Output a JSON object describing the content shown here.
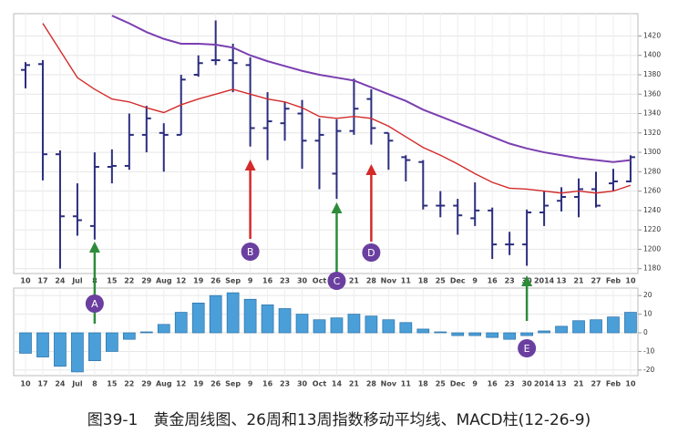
{
  "caption": "图39-1　黄金周线图、26周和13周指数移动平均线、MACD柱(12-26-9)",
  "chart_data": [
    {
      "type": "ohlc",
      "categories": [
        "10",
        "17",
        "24",
        "Jul",
        "8",
        "15",
        "22",
        "29",
        "Aug",
        "12",
        "19",
        "26",
        "Sep",
        "9",
        "16",
        "23",
        "30",
        "Oct",
        "14",
        "21",
        "28",
        "Nov",
        "11",
        "18",
        "25",
        "Dec",
        "9",
        "16",
        "23",
        "30",
        "2014",
        "13",
        "21",
        "27",
        "Feb",
        "10"
      ],
      "open": [
        1385,
        1391,
        1298,
        1234,
        1224,
        1285,
        1286,
        1318,
        1320,
        1318,
        1380,
        1395,
        1395,
        1390,
        1325,
        1330,
        1340,
        1312,
        1278,
        1322,
        1355,
        1320,
        1295,
        1290,
        1245,
        1245,
        1232,
        1240,
        1205,
        1205,
        1238,
        1250,
        1254,
        1262,
        1268,
        1270
      ],
      "high": [
        1393,
        1395,
        1302,
        1268,
        1300,
        1303,
        1340,
        1348,
        1330,
        1380,
        1400,
        1436,
        1412,
        1398,
        1362,
        1352,
        1354,
        1335,
        1334,
        1376,
        1365,
        1320,
        1297,
        1292,
        1260,
        1252,
        1269,
        1243,
        1218,
        1241,
        1260,
        1264,
        1273,
        1280,
        1283,
        1297
      ],
      "low": [
        1366,
        1271,
        1180,
        1214,
        1210,
        1268,
        1282,
        1300,
        1280,
        1318,
        1378,
        1390,
        1362,
        1306,
        1292,
        1312,
        1283,
        1262,
        1252,
        1318,
        1308,
        1282,
        1270,
        1241,
        1233,
        1215,
        1224,
        1190,
        1194,
        1183,
        1224,
        1239,
        1233,
        1243,
        1260,
        1269
      ],
      "close": [
        1390,
        1298,
        1234,
        1230,
        1285,
        1286,
        1318,
        1335,
        1318,
        1375,
        1392,
        1395,
        1392,
        1325,
        1332,
        1345,
        1312,
        1318,
        1322,
        1345,
        1325,
        1312,
        1292,
        1245,
        1245,
        1235,
        1240,
        1205,
        1205,
        1238,
        1245,
        1254,
        1262,
        1245,
        1270,
        1295
      ],
      "color": "#2b2d7e",
      "series": [
        {
          "name": "13-week EMA",
          "color": "#d42a2a",
          "values": [
            null,
            1433,
            1405,
            1377,
            1365,
            1355,
            1352,
            1346,
            1341,
            1349,
            1355,
            1360,
            1365,
            1360,
            1355,
            1352,
            1346,
            1337,
            1335,
            1337,
            1335,
            1327,
            1316,
            1305,
            1297,
            1288,
            1278,
            1269,
            1263,
            1262,
            1260,
            1258,
            1260,
            1258,
            1260,
            1266
          ]
        },
        {
          "name": "26-week EMA",
          "color": "#7b3fb0",
          "values": [
            null,
            null,
            null,
            null,
            null,
            1441,
            1433,
            1424,
            1417,
            1412,
            1412,
            1411,
            1408,
            1400,
            1394,
            1389,
            1384,
            1380,
            1377,
            1374,
            1367,
            1360,
            1353,
            1344,
            1337,
            1330,
            1323,
            1316,
            1309,
            1304,
            1300,
            1297,
            1294,
            1292,
            1290,
            1292
          ]
        }
      ],
      "ylim": [
        1175,
        1443
      ],
      "yticks": [
        1180,
        1200,
        1220,
        1240,
        1260,
        1280,
        1300,
        1320,
        1340,
        1360,
        1380,
        1400,
        1420
      ],
      "grid": true,
      "annotations": [
        {
          "text": "A",
          "color": "#2e8b3a"
        },
        {
          "text": "B",
          "color": "#d42a2a"
        },
        {
          "text": "C",
          "color": "#2e8b3a"
        },
        {
          "text": "D",
          "color": "#d42a2a"
        },
        {
          "text": "E",
          "color": "#2e8b3a"
        }
      ]
    },
    {
      "type": "bar",
      "categories": [
        "10",
        "17",
        "24",
        "Jul",
        "8",
        "15",
        "22",
        "29",
        "Aug",
        "12",
        "19",
        "26",
        "Sep",
        "9",
        "16",
        "23",
        "30",
        "Oct",
        "14",
        "21",
        "28",
        "Nov",
        "11",
        "18",
        "25",
        "Dec",
        "9",
        "16",
        "23",
        "30",
        "2014",
        "13",
        "21",
        "27",
        "Feb",
        "10"
      ],
      "values": [
        -11,
        -13,
        -18,
        -21,
        -15,
        -10,
        -3.5,
        0.5,
        4.5,
        11,
        16,
        20,
        21.5,
        18,
        15,
        13,
        10,
        7,
        8,
        10,
        9,
        7,
        5.5,
        2,
        0.5,
        -1.5,
        -1.5,
        -2.5,
        -3.5,
        -1.5,
        1,
        3.5,
        6.5,
        7,
        8.5,
        11
      ],
      "color": "#4a9fd8",
      "ylim": [
        -23,
        24
      ],
      "yticks": [
        -20,
        -10,
        0,
        10,
        20
      ],
      "grid": true
    }
  ]
}
